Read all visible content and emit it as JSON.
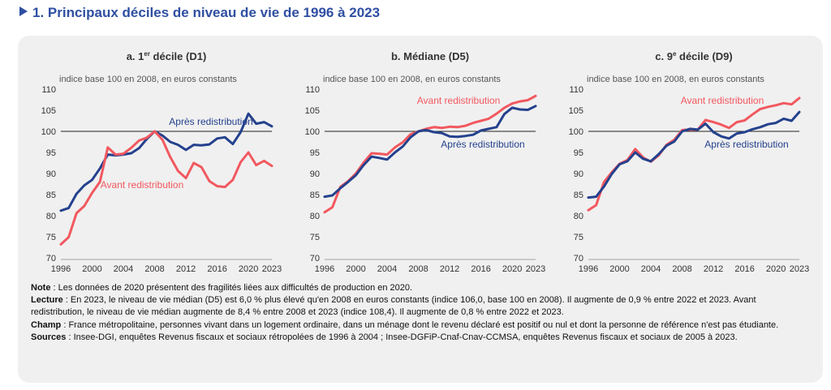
{
  "title": "1. Principaux déciles de niveau de vie de 1996 à 2023",
  "chart_data": [
    {
      "type": "line",
      "title_prefix": "a. 1",
      "title_sup": "er",
      "title_suffix": " décile (D1)",
      "subtitle": "indice base 100 en 2008, en euros constants",
      "ylim": [
        70,
        110
      ],
      "yticks": [
        70,
        75,
        80,
        85,
        90,
        95,
        100,
        105,
        110
      ],
      "xticks": [
        1996,
        2000,
        2004,
        2008,
        2012,
        2016,
        2020,
        2023
      ],
      "reference_line": 100,
      "x": [
        1996,
        1997,
        1998,
        1999,
        2000,
        2001,
        2002,
        2003,
        2004,
        2005,
        2006,
        2007,
        2008,
        2009,
        2010,
        2011,
        2012,
        2013,
        2014,
        2015,
        2016,
        2017,
        2018,
        2019,
        2020,
        2021,
        2022,
        2023
      ],
      "series": [
        {
          "name": "Après redistribution",
          "color": "#24418d",
          "label_pos": "top-right",
          "values": [
            81.2,
            81.8,
            85.2,
            87.2,
            88.5,
            91.2,
            94.5,
            94.3,
            94.5,
            94.8,
            96.0,
            98.2,
            100.0,
            99.0,
            97.5,
            96.8,
            95.6,
            96.8,
            96.7,
            96.9,
            98.3,
            98.6,
            97.0,
            99.8,
            104.2,
            101.8,
            102.2,
            101.2
          ]
        },
        {
          "name": "Avant redistribution",
          "color": "#f2585f",
          "label_pos": "bottom",
          "values": [
            73.2,
            74.9,
            80.6,
            82.3,
            85.4,
            88.0,
            96.2,
            94.5,
            94.7,
            96.1,
            97.8,
            98.5,
            100.0,
            98.0,
            93.9,
            90.6,
            88.9,
            92.5,
            91.5,
            88.2,
            87.0,
            86.8,
            88.5,
            92.7,
            95.0,
            92.0,
            93.0,
            91.8
          ]
        }
      ]
    },
    {
      "type": "line",
      "title_prefix": "b. Médiane (D5)",
      "title_sup": "",
      "title_suffix": "",
      "subtitle": "indice base 100 en 2008, en euros constants",
      "ylim": [
        70,
        110
      ],
      "yticks": [
        70,
        75,
        80,
        85,
        90,
        95,
        100,
        105,
        110
      ],
      "xticks": [
        1996,
        2000,
        2004,
        2008,
        2012,
        2016,
        2020,
        2023
      ],
      "reference_line": 100,
      "x": [
        1996,
        1997,
        1998,
        1999,
        2000,
        2001,
        2002,
        2003,
        2004,
        2005,
        2006,
        2007,
        2008,
        2009,
        2010,
        2011,
        2012,
        2013,
        2014,
        2015,
        2016,
        2017,
        2018,
        2019,
        2020,
        2021,
        2022,
        2023
      ],
      "series": [
        {
          "name": "Avant redistribution",
          "color": "#f2585f",
          "label_pos": "top",
          "values": [
            80.8,
            82.0,
            86.8,
            88.2,
            90.0,
            92.6,
            94.8,
            94.7,
            94.5,
            96.2,
            97.4,
            99.3,
            100.0,
            100.6,
            101.0,
            100.8,
            101.1,
            101.0,
            101.3,
            102.0,
            102.5,
            103.0,
            104.2,
            105.6,
            106.6,
            107.1,
            107.4,
            108.4
          ]
        },
        {
          "name": "Après redistribution",
          "color": "#24418d",
          "label_pos": "bottom-right",
          "values": [
            84.5,
            84.8,
            86.5,
            88.0,
            89.6,
            92.0,
            94.0,
            93.7,
            93.3,
            95.0,
            96.4,
            98.6,
            100.0,
            100.3,
            99.8,
            99.6,
            98.8,
            98.7,
            98.9,
            99.2,
            100.2,
            100.6,
            101.0,
            104.1,
            105.6,
            105.2,
            105.1,
            106.0
          ]
        }
      ]
    },
    {
      "type": "line",
      "title_prefix": "c. 9",
      "title_sup": "e",
      "title_suffix": " décile (D9)",
      "subtitle": "indice base 100 en 2008, en euros constants",
      "ylim": [
        70,
        110
      ],
      "yticks": [
        70,
        75,
        80,
        85,
        90,
        95,
        100,
        105,
        110
      ],
      "xticks": [
        1996,
        2000,
        2004,
        2008,
        2012,
        2016,
        2020,
        2023
      ],
      "reference_line": 100,
      "x": [
        1996,
        1997,
        1998,
        1999,
        2000,
        2001,
        2002,
        2003,
        2004,
        2005,
        2006,
        2007,
        2008,
        2009,
        2010,
        2011,
        2012,
        2013,
        2014,
        2015,
        2016,
        2017,
        2018,
        2019,
        2020,
        2021,
        2022,
        2023
      ],
      "series": [
        {
          "name": "Avant redistribution",
          "color": "#f2585f",
          "label_pos": "top",
          "values": [
            81.3,
            82.5,
            88.0,
            90.3,
            92.3,
            93.2,
            95.8,
            93.8,
            92.8,
            94.3,
            96.8,
            98.0,
            100.3,
            100.4,
            100.4,
            102.7,
            102.2,
            101.6,
            100.8,
            102.2,
            102.6,
            104.0,
            105.3,
            105.8,
            106.2,
            106.7,
            106.4,
            107.9
          ]
        },
        {
          "name": "Après redistribution",
          "color": "#24418d",
          "label_pos": "bottom-right",
          "values": [
            84.3,
            84.5,
            86.9,
            89.9,
            92.2,
            92.9,
            95.0,
            93.5,
            92.9,
            94.6,
            96.6,
            97.6,
            100.0,
            100.6,
            100.4,
            101.8,
            99.8,
            98.8,
            98.3,
            99.5,
            99.8,
            100.5,
            101.0,
            101.7,
            102.0,
            103.0,
            102.5,
            104.6
          ]
        }
      ]
    }
  ],
  "notes": [
    {
      "label": "Note",
      "text": " : Les données de 2020 présentent des fragilités liées aux difficultés de production en 2020."
    },
    {
      "label": "Lecture",
      "text": " : En 2023, le niveau de vie médian (D5) est 6,0 % plus élevé qu'en 2008 en euros constants (indice 106,0, base 100 en 2008). Il augmente de 0,9 % entre 2022 et 2023. Avant redistribution, le niveau de vie médian augmente de 8,4 % entre 2008 et 2023 (indice 108,4). Il augmente de 0,8 % entre 2022 et 2023."
    },
    {
      "label": "Champ",
      "text": " : France métropolitaine, personnes vivant dans un logement ordinaire, dans un ménage dont le revenu déclaré est positif ou nul et dont la personne de référence n'est pas étudiante."
    },
    {
      "label": "Sources",
      "text": " : Insee-DGI, enquêtes Revenus fiscaux et sociaux rétropolées de 1996 à 2004 ; Insee-DGFiP-Cnaf-Cnav-CCMSA, enquêtes Revenus fiscaux et sociaux de 2005 à 2023."
    }
  ]
}
